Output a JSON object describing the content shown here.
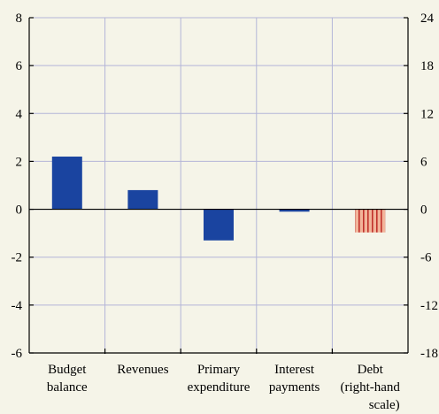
{
  "chart_data": {
    "type": "bar",
    "categories": [
      [
        "Budget",
        "balance"
      ],
      [
        "Revenues"
      ],
      [
        "Primary",
        "expenditure"
      ],
      [
        "Interest",
        "payments"
      ],
      [
        "Debt",
        "(right-hand",
        "scale)"
      ]
    ],
    "series": [
      {
        "values": [
          2.2,
          0.8,
          -1.3,
          -0.1,
          -2.9
        ],
        "axis": [
          "left",
          "left",
          "left",
          "left",
          "right"
        ]
      }
    ],
    "y_left": {
      "min": -6,
      "max": 8,
      "ticks": [
        8,
        6,
        4,
        2,
        0,
        -2,
        -4,
        -6
      ]
    },
    "y_right": {
      "min": -18,
      "max": 24,
      "ticks": [
        24,
        18,
        12,
        6,
        0,
        -6,
        -12,
        -18
      ]
    },
    "grid": true,
    "colors": {
      "bar": "#1a44a0",
      "debt_bar": "#f2b49a",
      "debt_stripe": "#c0312b",
      "grid": "#b3b5d8",
      "background": "#f5f4e8"
    }
  }
}
